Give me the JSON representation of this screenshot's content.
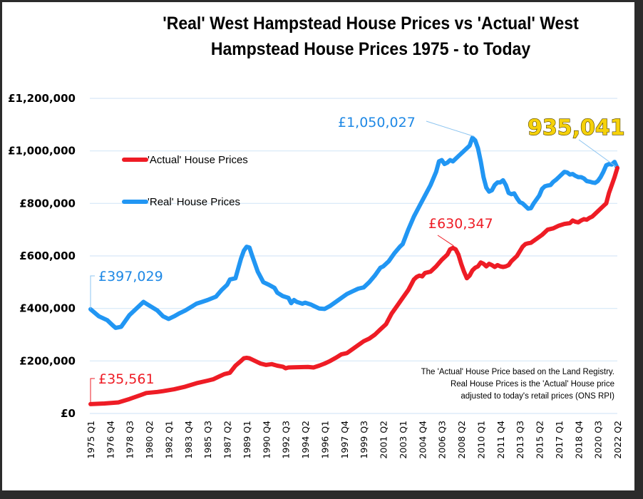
{
  "chart_data": {
    "type": "line",
    "title": "'Real' West Hampstead House Prices vs 'Actual' West Hampstead House Prices 1975 - to Today",
    "title_lines": [
      "'Real' West Hampstead House Prices vs 'Actual' West",
      "Hampstead House Prices 1975 - to Today"
    ],
    "xlabel": "",
    "ylabel": "",
    "x_unit": "decimal year (quarterly, 1975 Q1 = 1975.0)",
    "xlim": [
      1975.0,
      2022.25
    ],
    "ylim": [
      0,
      1200000
    ],
    "grid": true,
    "y_ticks": [
      0,
      200000,
      400000,
      600000,
      800000,
      1000000,
      1200000
    ],
    "y_tick_labels": [
      "£0",
      "£200,000",
      "£400,000",
      "£600,000",
      "£800,000",
      "£1,000,000",
      "£1,200,000"
    ],
    "x_tick_labels": [
      "1975 Q1",
      "1976 Q4",
      "1978 Q3",
      "1980 Q2",
      "1982 Q1",
      "1983 Q4",
      "1985 Q3",
      "1987 Q2",
      "1989 Q1",
      "1990 Q4",
      "1992 Q3",
      "1994 Q2",
      "1996 Q1",
      "1997 Q4",
      "1999 Q3",
      "2001 Q2",
      "2003 Q1",
      "2004 Q4",
      "2006 Q3",
      "2008 Q2",
      "2010 Q1",
      "2011 Q4",
      "2013 Q3",
      "2015 Q2",
      "2017 Q1",
      "2018 Q4",
      "2020 Q3",
      "2022 Q2"
    ],
    "legend": {
      "placement": "upper-left",
      "entries": [
        "'Actual' House Prices",
        "'Real' House Prices"
      ]
    },
    "series": [
      {
        "name": "'Actual' House Prices",
        "color": "#ee1c25",
        "points": [
          [
            1975.0,
            35561
          ],
          [
            1976.25,
            38000
          ],
          [
            1977.5,
            42000
          ],
          [
            1978.5,
            55000
          ],
          [
            1979.5,
            70000
          ],
          [
            1980.0,
            78000
          ],
          [
            1981.0,
            82000
          ],
          [
            1981.5,
            85000
          ],
          [
            1982.5,
            92000
          ],
          [
            1983.5,
            102000
          ],
          [
            1984.5,
            115000
          ],
          [
            1985.5,
            125000
          ],
          [
            1986.0,
            130000
          ],
          [
            1986.5,
            140000
          ],
          [
            1987.0,
            150000
          ],
          [
            1987.5,
            155000
          ],
          [
            1988.0,
            182000
          ],
          [
            1988.5,
            200000
          ],
          [
            1988.75,
            210000
          ],
          [
            1989.0,
            212000
          ],
          [
            1989.25,
            210000
          ],
          [
            1989.75,
            200000
          ],
          [
            1990.25,
            190000
          ],
          [
            1990.75,
            185000
          ],
          [
            1991.25,
            188000
          ],
          [
            1991.75,
            182000
          ],
          [
            1992.25,
            178000
          ],
          [
            1992.5,
            172000
          ],
          [
            1992.75,
            175000
          ],
          [
            1993.25,
            176000
          ],
          [
            1994.5,
            177000
          ],
          [
            1995.0,
            175000
          ],
          [
            1995.5,
            182000
          ],
          [
            1996.0,
            190000
          ],
          [
            1996.5,
            200000
          ],
          [
            1997.0,
            212000
          ],
          [
            1997.5,
            225000
          ],
          [
            1998.0,
            230000
          ],
          [
            1998.5,
            245000
          ],
          [
            1999.0,
            260000
          ],
          [
            1999.5,
            275000
          ],
          [
            2000.0,
            285000
          ],
          [
            2000.5,
            300000
          ],
          [
            2001.0,
            320000
          ],
          [
            2001.5,
            340000
          ],
          [
            2002.0,
            380000
          ],
          [
            2002.5,
            410000
          ],
          [
            2003.0,
            440000
          ],
          [
            2003.5,
            470000
          ],
          [
            2004.0,
            510000
          ],
          [
            2004.25,
            520000
          ],
          [
            2004.5,
            525000
          ],
          [
            2004.75,
            522000
          ],
          [
            2005.0,
            535000
          ],
          [
            2005.5,
            540000
          ],
          [
            2006.0,
            560000
          ],
          [
            2006.5,
            585000
          ],
          [
            2007.0,
            605000
          ],
          [
            2007.25,
            625000
          ],
          [
            2007.5,
            630347
          ],
          [
            2007.75,
            625000
          ],
          [
            2008.0,
            605000
          ],
          [
            2008.25,
            570000
          ],
          [
            2008.5,
            540000
          ],
          [
            2008.75,
            515000
          ],
          [
            2009.0,
            525000
          ],
          [
            2009.25,
            545000
          ],
          [
            2009.5,
            555000
          ],
          [
            2009.75,
            560000
          ],
          [
            2010.0,
            575000
          ],
          [
            2010.25,
            570000
          ],
          [
            2010.5,
            560000
          ],
          [
            2010.75,
            570000
          ],
          [
            2011.0,
            565000
          ],
          [
            2011.25,
            558000
          ],
          [
            2011.5,
            565000
          ],
          [
            2011.75,
            560000
          ],
          [
            2012.0,
            558000
          ],
          [
            2012.25,
            560000
          ],
          [
            2012.5,
            565000
          ],
          [
            2012.75,
            580000
          ],
          [
            2013.25,
            600000
          ],
          [
            2013.75,
            635000
          ],
          [
            2014.0,
            645000
          ],
          [
            2014.25,
            648000
          ],
          [
            2014.5,
            650000
          ],
          [
            2015.0,
            665000
          ],
          [
            2015.5,
            680000
          ],
          [
            2016.0,
            700000
          ],
          [
            2016.5,
            705000
          ],
          [
            2017.0,
            715000
          ],
          [
            2017.5,
            722000
          ],
          [
            2018.0,
            725000
          ],
          [
            2018.25,
            735000
          ],
          [
            2018.5,
            730000
          ],
          [
            2018.75,
            728000
          ],
          [
            2019.0,
            735000
          ],
          [
            2019.25,
            740000
          ],
          [
            2019.5,
            738000
          ],
          [
            2019.75,
            745000
          ],
          [
            2020.0,
            750000
          ],
          [
            2020.5,
            770000
          ],
          [
            2021.0,
            790000
          ],
          [
            2021.25,
            800000
          ],
          [
            2021.5,
            840000
          ],
          [
            2021.75,
            870000
          ],
          [
            2022.0,
            900000
          ],
          [
            2022.25,
            935041
          ]
        ]
      },
      {
        "name": "'Real' House Prices",
        "color": "#2196f3",
        "points": [
          [
            1975.0,
            397029
          ],
          [
            1975.75,
            370000
          ],
          [
            1976.5,
            355000
          ],
          [
            1977.0,
            335000
          ],
          [
            1977.25,
            326000
          ],
          [
            1977.75,
            330000
          ],
          [
            1978.0,
            345000
          ],
          [
            1978.5,
            375000
          ],
          [
            1979.25,
            405000
          ],
          [
            1979.75,
            425000
          ],
          [
            1980.0,
            418000
          ],
          [
            1980.5,
            405000
          ],
          [
            1981.0,
            392000
          ],
          [
            1981.5,
            370000
          ],
          [
            1982.0,
            360000
          ],
          [
            1982.5,
            370000
          ],
          [
            1983.0,
            382000
          ],
          [
            1983.5,
            392000
          ],
          [
            1984.0,
            405000
          ],
          [
            1984.5,
            418000
          ],
          [
            1985.0,
            425000
          ],
          [
            1985.5,
            432000
          ],
          [
            1986.25,
            445000
          ],
          [
            1986.75,
            470000
          ],
          [
            1987.25,
            490000
          ],
          [
            1987.5,
            510000
          ],
          [
            1988.0,
            515000
          ],
          [
            1988.5,
            590000
          ],
          [
            1988.75,
            620000
          ],
          [
            1989.0,
            635000
          ],
          [
            1989.25,
            632000
          ],
          [
            1989.5,
            600000
          ],
          [
            1990.0,
            540000
          ],
          [
            1990.5,
            500000
          ],
          [
            1991.0,
            490000
          ],
          [
            1991.5,
            478000
          ],
          [
            1991.75,
            460000
          ],
          [
            1992.25,
            447000
          ],
          [
            1992.75,
            440000
          ],
          [
            1993.0,
            420000
          ],
          [
            1993.25,
            432000
          ],
          [
            1993.5,
            425000
          ],
          [
            1994.0,
            418000
          ],
          [
            1994.25,
            422000
          ],
          [
            1994.75,
            415000
          ],
          [
            1995.0,
            410000
          ],
          [
            1995.5,
            400000
          ],
          [
            1996.0,
            398000
          ],
          [
            1996.5,
            410000
          ],
          [
            1997.0,
            425000
          ],
          [
            1997.5,
            440000
          ],
          [
            1998.0,
            455000
          ],
          [
            1998.5,
            465000
          ],
          [
            1999.0,
            475000
          ],
          [
            1999.5,
            480000
          ],
          [
            2000.0,
            500000
          ],
          [
            2000.5,
            525000
          ],
          [
            2001.0,
            555000
          ],
          [
            2001.25,
            560000
          ],
          [
            2001.75,
            580000
          ],
          [
            2002.25,
            610000
          ],
          [
            2002.75,
            635000
          ],
          [
            2003.0,
            645000
          ],
          [
            2003.5,
            700000
          ],
          [
            2004.0,
            750000
          ],
          [
            2004.5,
            790000
          ],
          [
            2005.0,
            830000
          ],
          [
            2005.5,
            870000
          ],
          [
            2006.0,
            920000
          ],
          [
            2006.25,
            960000
          ],
          [
            2006.5,
            965000
          ],
          [
            2006.75,
            950000
          ],
          [
            2007.0,
            955000
          ],
          [
            2007.25,
            965000
          ],
          [
            2007.5,
            960000
          ],
          [
            2008.0,
            980000
          ],
          [
            2008.5,
            1000000
          ],
          [
            2009.0,
            1020000
          ],
          [
            2009.25,
            1050027
          ],
          [
            2009.5,
            1040000
          ],
          [
            2009.75,
            1010000
          ],
          [
            2010.0,
            960000
          ],
          [
            2010.25,
            900000
          ],
          [
            2010.5,
            860000
          ],
          [
            2010.75,
            845000
          ],
          [
            2011.0,
            850000
          ],
          [
            2011.25,
            870000
          ],
          [
            2011.5,
            880000
          ],
          [
            2011.75,
            880000
          ],
          [
            2012.0,
            888000
          ],
          [
            2012.25,
            870000
          ],
          [
            2012.5,
            840000
          ],
          [
            2012.75,
            835000
          ],
          [
            2013.0,
            838000
          ],
          [
            2013.25,
            820000
          ],
          [
            2013.5,
            805000
          ],
          [
            2013.75,
            800000
          ],
          [
            2014.0,
            790000
          ],
          [
            2014.25,
            780000
          ],
          [
            2014.5,
            782000
          ],
          [
            2014.75,
            800000
          ],
          [
            2015.0,
            815000
          ],
          [
            2015.25,
            830000
          ],
          [
            2015.5,
            855000
          ],
          [
            2015.75,
            865000
          ],
          [
            2016.0,
            868000
          ],
          [
            2016.25,
            870000
          ],
          [
            2016.5,
            882000
          ],
          [
            2016.75,
            890000
          ],
          [
            2017.0,
            900000
          ],
          [
            2017.25,
            910000
          ],
          [
            2017.5,
            920000
          ],
          [
            2017.75,
            918000
          ],
          [
            2018.0,
            910000
          ],
          [
            2018.25,
            912000
          ],
          [
            2018.5,
            905000
          ],
          [
            2018.75,
            900000
          ],
          [
            2019.0,
            900000
          ],
          [
            2019.25,
            895000
          ],
          [
            2019.5,
            885000
          ],
          [
            2019.75,
            883000
          ],
          [
            2020.0,
            880000
          ],
          [
            2020.25,
            878000
          ],
          [
            2020.5,
            885000
          ],
          [
            2020.75,
            900000
          ],
          [
            2021.0,
            920000
          ],
          [
            2021.25,
            945000
          ],
          [
            2021.5,
            950000
          ],
          [
            2021.75,
            948000
          ],
          [
            2022.0,
            958000
          ],
          [
            2022.25,
            935041
          ]
        ]
      }
    ],
    "annotations": [
      {
        "text": "£397,029",
        "series": "'Real' House Prices",
        "x": 1975.0,
        "y": 397029
      },
      {
        "text": "£35,561",
        "series": "'Actual' House Prices",
        "x": 1975.0,
        "y": 35561
      },
      {
        "text": "£1,050,027",
        "series": "'Real' House Prices",
        "x": 2009.25,
        "y": 1050027
      },
      {
        "text": "£630,347",
        "series": "'Actual' House Prices",
        "x": 2007.5,
        "y": 630347
      },
      {
        "text": "935,041",
        "series": "both",
        "x": 2022.25,
        "y": 935041
      }
    ],
    "note_lines": [
      "The 'Actual' House Price based on the Land Registry.",
      "Real House Prices is the 'Actual' House price",
      "adjusted  to today's retail prices (ONS RPI)"
    ]
  }
}
